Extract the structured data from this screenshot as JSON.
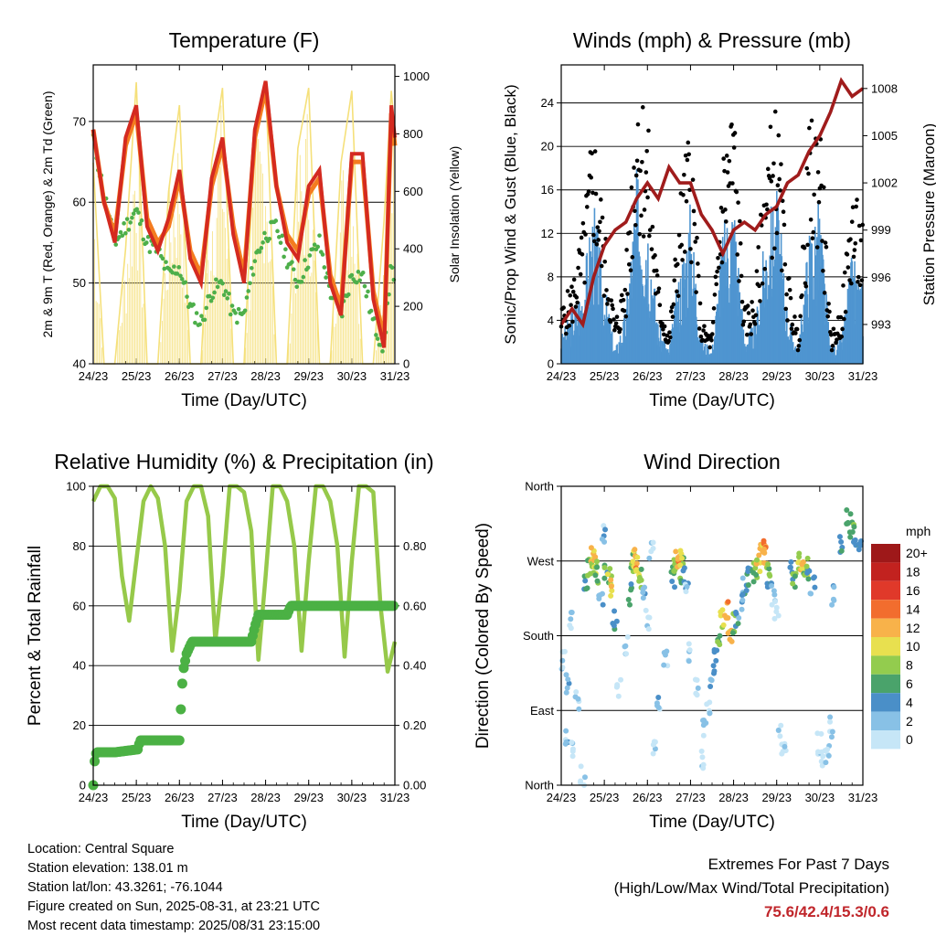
{
  "panels": {
    "temperature": {
      "title": "Temperature (F)",
      "ylabel_left": "2m & 9m T (Red, Orange) & 2m Td (Green)",
      "ylabel_right": "Solar Insolation (Yellow)",
      "xlabel": "Time (Day/UTC)"
    },
    "winds": {
      "title": "Winds (mph) & Pressure (mb)",
      "ylabel_left": "Sonic/Prop Wind & Gust (Blue, Black)",
      "ylabel_right": "Station Pressure (Maroon)",
      "xlabel": "Time (Day/UTC)"
    },
    "humidity": {
      "title": "Relative Humidity (%) & Precipitation (in)",
      "ylabel_left": "Percent & Total Rainfall",
      "xlabel": "Time (Day/UTC)"
    },
    "direction": {
      "title": "Wind Direction",
      "ylabel_left": "Direction (Colored By Speed)",
      "xlabel": "Time (Day/UTC)",
      "colorbar_title": "mph"
    }
  },
  "info": {
    "location": "Location: Central Square",
    "elevation": "Station elevation: 138.01 m",
    "latlon": "Station lat/lon: 43.3261; -76.1044",
    "created": "Figure created on Sun, 2025-08-31, at 23:21 UTC",
    "recent": "Most recent data timestamp: 2025/08/31 23:15:00"
  },
  "extremes": {
    "line1": "Extremes For Past 7 Days",
    "line2": "(High/Low/Max Wind/Total Precipitation)",
    "values": "75.6/42.4/15.3/0.6"
  },
  "colors": {
    "temp_2m": "#d42a20",
    "temp_9m": "#f47c20",
    "dewpoint": "#4daf4a",
    "solar": "#f5e07a",
    "wind": "#4f95d0",
    "gust": "#000000",
    "pressure": "#a01c1c",
    "rh": "#96c94a",
    "precip": "#4bb144"
  },
  "chart_data": [
    {
      "type": "line",
      "name": "temperature",
      "title": "Temperature (F)",
      "xlabel": "Time (Day/UTC)",
      "x_ticks": [
        "24/23",
        "25/23",
        "26/23",
        "27/23",
        "28/23",
        "29/23",
        "30/23",
        "31/23"
      ],
      "xlim": [
        0,
        168
      ],
      "ylim": [
        40,
        77
      ],
      "y_ticks": [
        40,
        50,
        60,
        70
      ],
      "y2lim": [
        0,
        1040
      ],
      "y2_ticks": [
        0,
        200,
        400,
        600,
        800,
        1000
      ],
      "grid": true,
      "x_hours": [
        0,
        6,
        12,
        18,
        24,
        30,
        36,
        42,
        48,
        54,
        60,
        66,
        72,
        78,
        84,
        90,
        96,
        102,
        108,
        114,
        120,
        126,
        132,
        138,
        144,
        150,
        156,
        162,
        166,
        168
      ],
      "series": [
        {
          "name": "2m T",
          "axis": "left",
          "values": [
            69,
            60,
            55,
            68,
            72,
            57,
            54,
            58,
            64,
            53,
            50,
            63,
            68,
            56,
            50,
            69,
            75,
            62,
            55,
            53,
            62,
            64,
            50,
            46,
            66,
            66,
            48,
            42,
            72,
            68
          ]
        },
        {
          "name": "9m T",
          "axis": "left",
          "values": [
            69,
            60,
            56,
            67,
            71,
            58,
            55,
            57,
            63,
            54,
            51,
            62,
            67,
            57,
            51,
            68,
            74,
            62,
            56,
            54,
            61,
            63,
            51,
            47,
            65,
            65,
            49,
            43,
            71,
            67
          ]
        },
        {
          "name": "2m Td",
          "axis": "left",
          "values": [
            68,
            61,
            55,
            57,
            59,
            55,
            54,
            51,
            52,
            47,
            45,
            49,
            50,
            46,
            46,
            53,
            56,
            57,
            53,
            50,
            53,
            55,
            49,
            46,
            51,
            51,
            45,
            42,
            53,
            48
          ]
        },
        {
          "name": "Solar",
          "axis": "right",
          "values": [
            700,
            0,
            0,
            400,
            980,
            0,
            0,
            600,
            900,
            0,
            0,
            700,
            960,
            0,
            0,
            800,
            980,
            0,
            0,
            750,
            960,
            0,
            0,
            700,
            950,
            0,
            0,
            500,
            950,
            800
          ]
        }
      ]
    },
    {
      "type": "line",
      "name": "winds",
      "title": "Winds (mph) & Pressure (mb)",
      "xlabel": "Time (Day/UTC)",
      "x_ticks": [
        "24/23",
        "25/23",
        "26/23",
        "27/23",
        "28/23",
        "29/23",
        "30/23",
        "31/23"
      ],
      "xlim": [
        0,
        168
      ],
      "ylim": [
        0,
        27.5
      ],
      "y_ticks": [
        0,
        4,
        8,
        12,
        16,
        20,
        24
      ],
      "y2lim": [
        990.5,
        1009.5
      ],
      "y2_ticks": [
        993,
        996,
        999,
        1002,
        1005,
        1008
      ],
      "grid": true,
      "x_hours": [
        0,
        6,
        12,
        18,
        24,
        30,
        36,
        42,
        48,
        54,
        60,
        66,
        72,
        78,
        84,
        90,
        96,
        102,
        108,
        114,
        120,
        126,
        132,
        138,
        144,
        150,
        156,
        162,
        168
      ],
      "series": [
        {
          "name": "Wind",
          "axis": "left",
          "values": [
            2,
            4,
            6,
            12,
            6,
            1,
            4,
            14,
            12,
            3,
            1,
            7,
            12,
            2,
            1,
            10,
            13,
            2,
            3,
            10,
            13,
            4,
            1,
            10,
            12,
            1,
            2,
            8,
            6
          ]
        },
        {
          "name": "Gust",
          "axis": "left",
          "values": [
            4,
            6,
            10,
            18,
            10,
            3,
            7,
            22,
            18,
            6,
            2,
            12,
            18,
            3,
            2,
            16,
            20,
            4,
            5,
            16,
            19,
            7,
            2,
            17,
            19,
            2,
            4,
            13,
            10
          ]
        },
        {
          "name": "Pressure",
          "axis": "right",
          "values": [
            993,
            994,
            993,
            996,
            998,
            999,
            999.5,
            1001,
            1002,
            1001,
            1003,
            1002,
            1002,
            1000,
            999,
            997.5,
            999,
            999.5,
            999,
            1000,
            1000.5,
            1002,
            1002.5,
            1004,
            1005,
            1006.5,
            1008.5,
            1007.5,
            1008
          ]
        }
      ]
    },
    {
      "type": "line",
      "name": "humidity",
      "title": "Relative Humidity (%) & Precipitation (in)",
      "xlabel": "Time (Day/UTC)",
      "x_ticks": [
        "24/23",
        "25/23",
        "26/23",
        "27/23",
        "28/23",
        "29/23",
        "30/23",
        "31/23"
      ],
      "xlim": [
        0,
        168
      ],
      "ylim": [
        0,
        100
      ],
      "y_ticks": [
        0,
        20,
        40,
        60,
        80,
        100
      ],
      "y2lim": [
        0,
        1.0
      ],
      "y2_ticks": [
        "0.00",
        "0.20",
        "0.40",
        "0.60",
        "0.80"
      ],
      "grid": true,
      "x_hours": [
        0,
        4,
        8,
        12,
        16,
        20,
        24,
        28,
        32,
        36,
        40,
        44,
        48,
        52,
        56,
        60,
        64,
        68,
        72,
        76,
        80,
        84,
        88,
        92,
        96,
        100,
        104,
        108,
        112,
        116,
        120,
        124,
        128,
        132,
        136,
        140,
        144,
        148,
        152,
        156,
        160,
        164,
        168
      ],
      "series": [
        {
          "name": "RH",
          "axis": "left",
          "values": [
            95,
            100,
            100,
            96,
            70,
            55,
            75,
            95,
            100,
            96,
            80,
            45,
            65,
            95,
            100,
            100,
            90,
            48,
            70,
            100,
            100,
            98,
            85,
            42,
            70,
            100,
            100,
            95,
            80,
            45,
            75,
            100,
            100,
            95,
            80,
            43,
            75,
            100,
            100,
            98,
            60,
            38,
            48
          ]
        },
        {
          "name": "Precipitation",
          "axis": "right",
          "points": [
            [
              0,
              0.0
            ],
            [
              1,
              0.1
            ],
            [
              2,
              0.11
            ],
            [
              12,
              0.11
            ],
            [
              25,
              0.12
            ],
            [
              26,
              0.15
            ],
            [
              48,
              0.15
            ],
            [
              49,
              0.28
            ],
            [
              50,
              0.38
            ],
            [
              52,
              0.44
            ],
            [
              55,
              0.48
            ],
            [
              88,
              0.48
            ],
            [
              90,
              0.53
            ],
            [
              92,
              0.57
            ],
            [
              108,
              0.57
            ],
            [
              110,
              0.6
            ],
            [
              168,
              0.6
            ]
          ]
        }
      ]
    },
    {
      "type": "scatter",
      "name": "direction",
      "title": "Wind Direction",
      "xlabel": "Time (Day/UTC)",
      "x_ticks": [
        "24/23",
        "25/23",
        "26/23",
        "27/23",
        "28/23",
        "29/23",
        "30/23",
        "31/23"
      ],
      "xlim": [
        0,
        168
      ],
      "ylim": [
        0,
        360
      ],
      "y_ticks": [
        {
          "value": 0,
          "label": "North"
        },
        {
          "value": 90,
          "label": "East"
        },
        {
          "value": 180,
          "label": "South"
        },
        {
          "value": 270,
          "label": "West"
        },
        {
          "value": 360,
          "label": "North"
        }
      ],
      "grid": true,
      "legend": "right",
      "colorbar": {
        "labels": [
          "0",
          "2",
          "4",
          "6",
          "8",
          "10",
          "12",
          "14",
          "16",
          "18",
          "20+"
        ],
        "colors": [
          "#c6e6f7",
          "#88c1e6",
          "#4a8fc8",
          "#4aa36b",
          "#93cc4e",
          "#e8e04f",
          "#f8b24a",
          "#f26d2e",
          "#e0392a",
          "#c2221f",
          "#9e1819"
        ]
      },
      "x": [
        1,
        3,
        4,
        5,
        7,
        9,
        12,
        14,
        16,
        17,
        18,
        19,
        20,
        22,
        24,
        25,
        27,
        28,
        30,
        32,
        36,
        38,
        40,
        41,
        42,
        43,
        44,
        46,
        48,
        50,
        52,
        54,
        58,
        62,
        64,
        65,
        66,
        67,
        68,
        70,
        72,
        76,
        78,
        80,
        82,
        84,
        86,
        88,
        90,
        92,
        94,
        96,
        98,
        100,
        102,
        104,
        106,
        108,
        110,
        112,
        113,
        114,
        115,
        116,
        118,
        120,
        122,
        124,
        128,
        130,
        132,
        134,
        136,
        138,
        140,
        144,
        146,
        148,
        150,
        152,
        156,
        160,
        162,
        164,
        166
      ],
      "y": [
        150,
        60,
        120,
        200,
        40,
        100,
        10,
        240,
        262,
        270,
        275,
        265,
        250,
        230,
        300,
        260,
        250,
        240,
        200,
        120,
        170,
        230,
        268,
        275,
        270,
        262,
        250,
        230,
        200,
        280,
        40,
        100,
        150,
        250,
        268,
        280,
        274,
        262,
        255,
        240,
        160,
        120,
        30,
        70,
        90,
        130,
        150,
        180,
        200,
        210,
        185,
        196,
        200,
        220,
        240,
        250,
        255,
        262,
        270,
        278,
        282,
        274,
        262,
        250,
        230,
        210,
        60,
        40,
        260,
        250,
        268,
        272,
        262,
        255,
        240,
        50,
        30,
        40,
        70,
        230,
        290,
        320,
        310,
        300,
        295
      ],
      "speed": [
        2,
        3,
        4,
        2,
        1,
        2,
        2,
        6,
        9,
        11,
        12,
        10,
        7,
        4,
        3,
        7,
        9,
        12,
        5,
        1,
        2,
        6,
        9,
        12,
        14,
        11,
        8,
        4,
        2,
        1,
        1,
        3,
        2,
        6,
        10,
        13,
        12,
        9,
        6,
        3,
        1,
        1,
        1,
        3,
        2,
        4,
        5,
        7,
        10,
        14,
        12,
        8,
        5,
        4,
        5,
        6,
        7,
        9,
        11,
        13,
        14,
        12,
        9,
        6,
        3,
        1,
        1,
        1,
        5,
        7,
        10,
        12,
        9,
        7,
        4,
        1,
        1,
        2,
        1,
        3,
        6,
        7,
        8,
        6,
        5
      ]
    }
  ]
}
